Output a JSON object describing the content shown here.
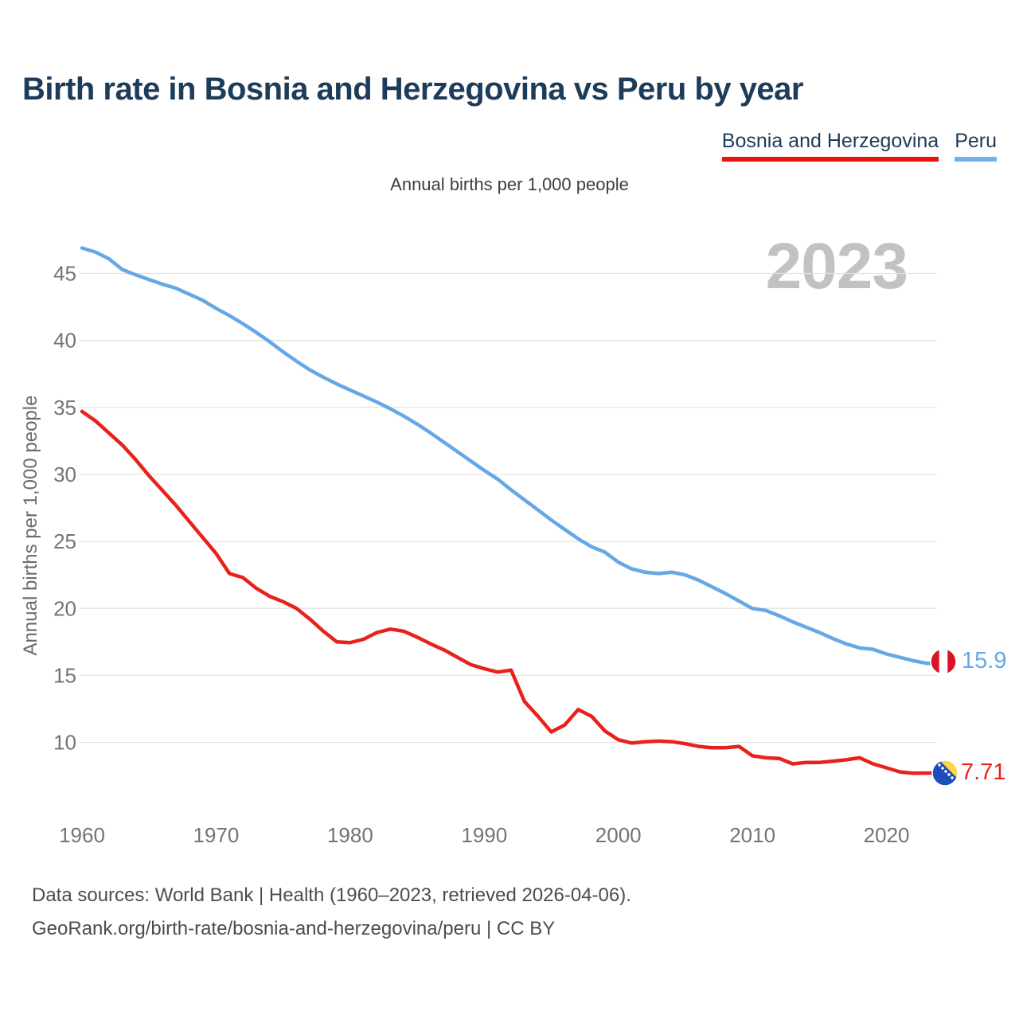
{
  "header": {
    "title": "Birth rate in Bosnia and Herzegovina vs Peru by year"
  },
  "legend": {
    "bosnia_label": "Bosnia and Herzegovina",
    "peru_label": "Peru",
    "bosnia_underline_color": "#ea130d",
    "peru_underline_color": "#74b2e8"
  },
  "subtitle": "Annual births per 1,000 people",
  "watermark": "2023",
  "footer": {
    "line1": "Data sources: World Bank | Health (1960–2023, retrieved 2026-04-06).",
    "line2": "GeoRank.org/birth-rate/bosnia-and-herzegovina/peru | CC BY"
  },
  "chart_data": {
    "type": "line",
    "title": "Birth rate in Bosnia and Herzegovina vs Peru by year",
    "ylabel": "Annual births per 1,000 people",
    "xlabel": "",
    "grid": "horizontal",
    "legend_position": "top-right",
    "xlim": [
      1960,
      2023
    ],
    "ylim": [
      7,
      48
    ],
    "xticks": [
      1960,
      1970,
      1980,
      1990,
      2000,
      2010,
      2020
    ],
    "yticks": [
      10,
      15,
      20,
      25,
      30,
      35,
      40,
      45
    ],
    "x": [
      1960,
      1961,
      1962,
      1963,
      1964,
      1965,
      1966,
      1967,
      1968,
      1969,
      1970,
      1971,
      1972,
      1973,
      1974,
      1975,
      1976,
      1977,
      1978,
      1979,
      1980,
      1981,
      1982,
      1983,
      1984,
      1985,
      1986,
      1987,
      1988,
      1989,
      1990,
      1991,
      1992,
      1993,
      1994,
      1995,
      1996,
      1997,
      1998,
      1999,
      2000,
      2001,
      2002,
      2003,
      2004,
      2005,
      2006,
      2007,
      2008,
      2009,
      2010,
      2011,
      2012,
      2013,
      2014,
      2015,
      2016,
      2017,
      2018,
      2019,
      2020,
      2021,
      2022,
      2023
    ],
    "series": [
      {
        "id": "bosnia",
        "name": "Bosnia and Herzegovina",
        "color": "#e9211c",
        "end_label": "7.71",
        "flag": "bosnia-and-herzegovina",
        "values": [
          34.7,
          34.0,
          33.1,
          32.2,
          31.1,
          29.9,
          28.8,
          27.7,
          26.5,
          25.3,
          24.1,
          22.6,
          22.3,
          21.5,
          20.9,
          20.5,
          20.0,
          19.2,
          18.3,
          17.5,
          17.45,
          17.7,
          18.2,
          18.45,
          18.3,
          17.85,
          17.35,
          16.9,
          16.35,
          15.8,
          15.5,
          15.25,
          15.4,
          13.05,
          11.95,
          10.78,
          11.3,
          12.45,
          11.95,
          10.85,
          10.2,
          9.95,
          10.05,
          10.1,
          10.05,
          9.9,
          9.7,
          9.6,
          9.6,
          9.7,
          9.0,
          8.85,
          8.8,
          8.4,
          8.5,
          8.5,
          8.6,
          8.7,
          8.85,
          8.4,
          8.1,
          7.8,
          7.7,
          7.71
        ]
      },
      {
        "id": "peru",
        "name": "Peru",
        "color": "#66a8e6",
        "end_label": "15.9",
        "flag": "peru",
        "values": [
          46.9,
          46.6,
          46.1,
          45.3,
          44.9,
          44.55,
          44.2,
          43.9,
          43.45,
          43.0,
          42.4,
          41.85,
          41.25,
          40.6,
          39.9,
          39.15,
          38.45,
          37.8,
          37.25,
          36.75,
          36.3,
          35.85,
          35.4,
          34.9,
          34.35,
          33.75,
          33.1,
          32.4,
          31.7,
          31.0,
          30.3,
          29.65,
          28.85,
          28.1,
          27.35,
          26.6,
          25.9,
          25.2,
          24.6,
          24.2,
          23.45,
          22.95,
          22.7,
          22.6,
          22.7,
          22.5,
          22.1,
          21.6,
          21.1,
          20.55,
          20.0,
          19.85,
          19.45,
          19.0,
          18.6,
          18.2,
          17.75,
          17.35,
          17.05,
          16.95,
          16.6,
          16.35,
          16.1,
          15.9
        ]
      }
    ]
  }
}
